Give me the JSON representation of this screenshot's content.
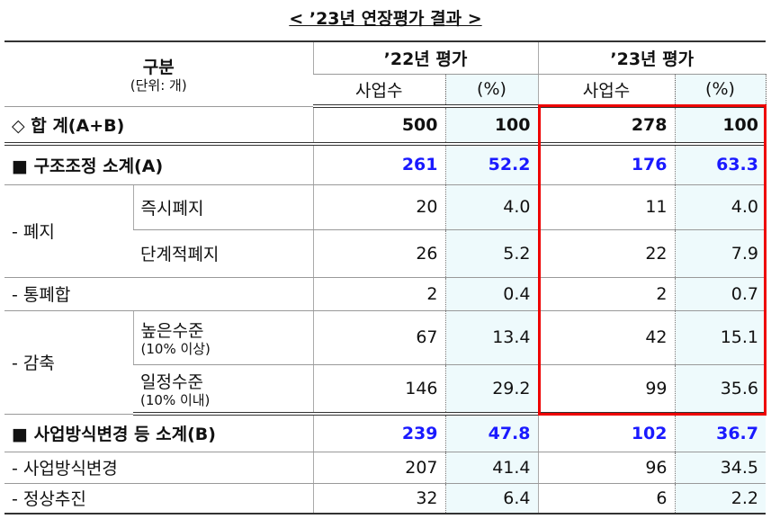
{
  "title": "< ’23년 연장평가 결과 >",
  "header": {
    "category": "구분",
    "unit": "(단위: 개)",
    "year_a": "’22년 평가",
    "year_b": "’23년 평가",
    "columns": [
      "사업수",
      "(%)",
      "사업수",
      "(%)"
    ]
  },
  "rows": [
    {
      "label": "◇ 합  계(A+B)",
      "values": [
        "500",
        "100",
        "278",
        "100"
      ]
    },
    {
      "label": "■ 구조조정 소계(A)",
      "values": [
        "261",
        "52.2",
        "176",
        "63.3"
      ]
    },
    {
      "label": "- 폐지",
      "items": [
        {
          "label": "즉시폐지",
          "values": [
            "20",
            "4.0",
            "11",
            "4.0"
          ]
        },
        {
          "label": "단계적폐지",
          "values": [
            "26",
            "5.2",
            "22",
            "7.9"
          ]
        }
      ]
    },
    {
      "label": "- 통폐합",
      "values": [
        "2",
        "0.4",
        "2",
        "0.7"
      ]
    },
    {
      "label": "- 감축",
      "items": [
        {
          "label": "높은수준",
          "note": "(10% 이상)",
          "values": [
            "67",
            "13.4",
            "42",
            "15.1"
          ]
        },
        {
          "label": "일정수준",
          "note": "(10% 이내)",
          "values": [
            "146",
            "29.2",
            "99",
            "35.6"
          ]
        }
      ]
    },
    {
      "label": "■ 사업방식변경 등 소계(B)",
      "values": [
        "239",
        "47.8",
        "102",
        "36.7"
      ]
    },
    {
      "label": "- 사업방식변경",
      "values": [
        "207",
        "41.4",
        "96",
        "34.5"
      ]
    },
    {
      "label": "- 정상추진",
      "values": [
        "32",
        "6.4",
        "6",
        "2.2"
      ]
    }
  ]
}
